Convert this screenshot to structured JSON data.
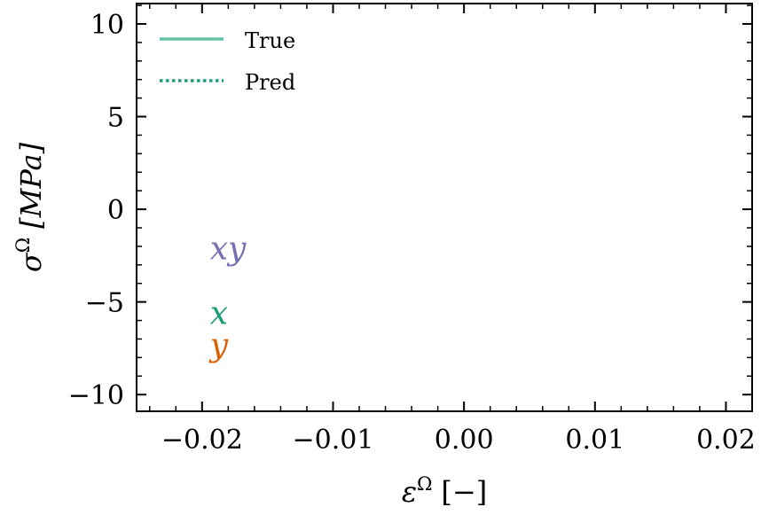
{
  "chart_data": {
    "type": "line",
    "title": "",
    "xlabel": "εΩ [−]",
    "xlabel_base": "ε",
    "xlabel_sup": "Ω",
    "xlabel_unit": "[−]",
    "ylabel": "σΩ [MPa]",
    "ylabel_base": "σ",
    "ylabel_sup": "Ω",
    "ylabel_unit": "[MPa]",
    "xlim": [
      -0.025,
      0.022
    ],
    "ylim": [
      -10.9,
      11.1
    ],
    "xticks": [
      -0.02,
      -0.01,
      0.0,
      0.01,
      0.02
    ],
    "xtick_labels": [
      "−0.02",
      "−0.01",
      "0.00",
      "0.01",
      "0.02"
    ],
    "yticks": [
      -10,
      -5,
      0,
      5,
      10
    ],
    "ytick_labels": [
      "−10",
      "−5",
      "0",
      "5",
      "10"
    ],
    "x_minor_step": 0.002,
    "y_minor_step": 1,
    "grid": false,
    "legend": {
      "placement": "top-left",
      "entries": [
        {
          "label": "True",
          "style": "solid",
          "color": "#66c2a5"
        },
        {
          "label": "Pred",
          "style": "dotted",
          "color": "#1b9e77"
        }
      ]
    },
    "series": [],
    "annotations": [
      {
        "text": "xy",
        "x": -0.0194,
        "y": -2.7,
        "color": "#7570b3"
      },
      {
        "text": "x",
        "x": -0.0194,
        "y": -6.2,
        "color": "#1b9e77"
      },
      {
        "text": "y",
        "x": -0.0194,
        "y": -7.9,
        "color": "#d95f02"
      }
    ]
  }
}
